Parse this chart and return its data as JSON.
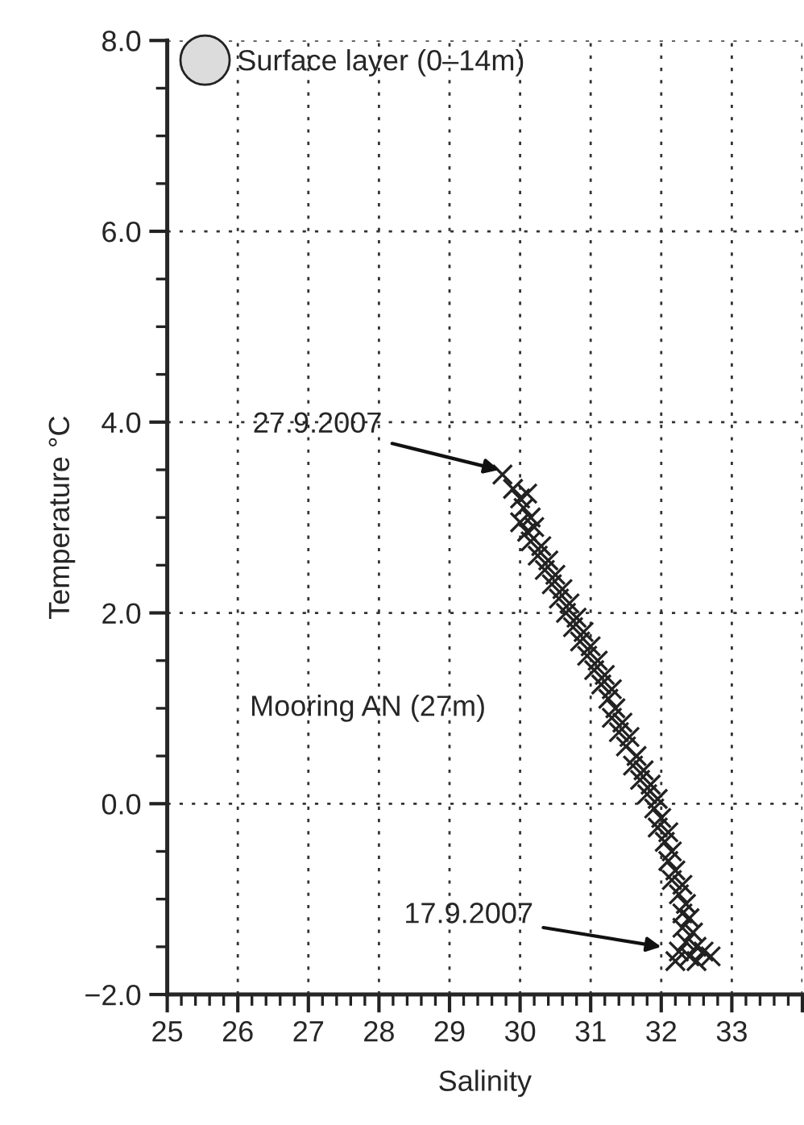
{
  "chart_data": {
    "type": "scatter",
    "xlabel": "Salinity",
    "ylabel": "Temperature °C",
    "xlim": [
      25,
      34
    ],
    "ylim": [
      -2,
      8
    ],
    "xticks": [
      25,
      26,
      27,
      28,
      29,
      30,
      31,
      32,
      33,
      {
        "value": 34,
        "label": null
      }
    ],
    "yticks": [
      {
        "value": -2,
        "label": "−2.0"
      },
      {
        "value": 0,
        "label": "0.0"
      },
      {
        "value": 2,
        "label": "2.0"
      },
      {
        "value": 4,
        "label": "4.0"
      },
      {
        "value": 6,
        "label": "6.0"
      },
      {
        "value": 8,
        "label": "8.0"
      }
    ],
    "grid": true,
    "legend": "top left",
    "series": [
      {
        "color": "#222222",
        "marker": "cross",
        "x": [
          29.75,
          29.9,
          30.0,
          30.05,
          30.1,
          30.15,
          30.0,
          30.1,
          30.2,
          30.15,
          30.3,
          30.25,
          30.4,
          30.35,
          30.5,
          30.45,
          30.6,
          30.55,
          30.7,
          30.65,
          30.8,
          30.75,
          30.9,
          30.85,
          31.0,
          30.95,
          31.1,
          31.05,
          31.2,
          31.15,
          31.3,
          31.25,
          31.35,
          31.3,
          31.45,
          31.4,
          31.55,
          31.5,
          31.65,
          31.6,
          31.75,
          31.7,
          31.85,
          31.8,
          31.95,
          31.9,
          32.0,
          31.95,
          32.1,
          32.05,
          32.15,
          32.1,
          32.2,
          32.15,
          32.3,
          32.25,
          32.35,
          32.3,
          32.4,
          32.3,
          32.45,
          32.35,
          32.5,
          32.25,
          32.6,
          32.4,
          32.7,
          32.2,
          32.5
        ],
        "values": [
          3.45,
          3.3,
          3.2,
          3.1,
          3.25,
          3.0,
          2.95,
          2.85,
          2.9,
          2.75,
          2.7,
          2.6,
          2.55,
          2.45,
          2.4,
          2.3,
          2.25,
          2.15,
          2.1,
          2.0,
          1.95,
          1.85,
          1.8,
          1.7,
          1.65,
          1.55,
          1.5,
          1.4,
          1.35,
          1.25,
          1.2,
          1.1,
          1.0,
          0.9,
          0.85,
          0.75,
          0.7,
          0.6,
          0.5,
          0.4,
          0.35,
          0.25,
          0.2,
          0.1,
          0.05,
          -0.05,
          -0.15,
          -0.25,
          -0.3,
          -0.4,
          -0.5,
          -0.6,
          -0.7,
          -0.8,
          -0.85,
          -0.95,
          -1.05,
          -1.15,
          -1.2,
          -1.3,
          -1.35,
          -1.45,
          -1.5,
          -1.55,
          -1.55,
          -1.6,
          -1.6,
          -1.65,
          -1.65
        ]
      },
      {
        "name": "Surface layer (0–14m)",
        "color": "#dcdcdc",
        "marker": "circle"
      }
    ],
    "annotations": [
      {
        "text": "27.9.2007",
        "x": 29.7,
        "y": 3.5
      },
      {
        "text": "17.9.2007",
        "x": 32.0,
        "y": -1.5
      },
      "Mooring AN (27m)"
    ]
  }
}
